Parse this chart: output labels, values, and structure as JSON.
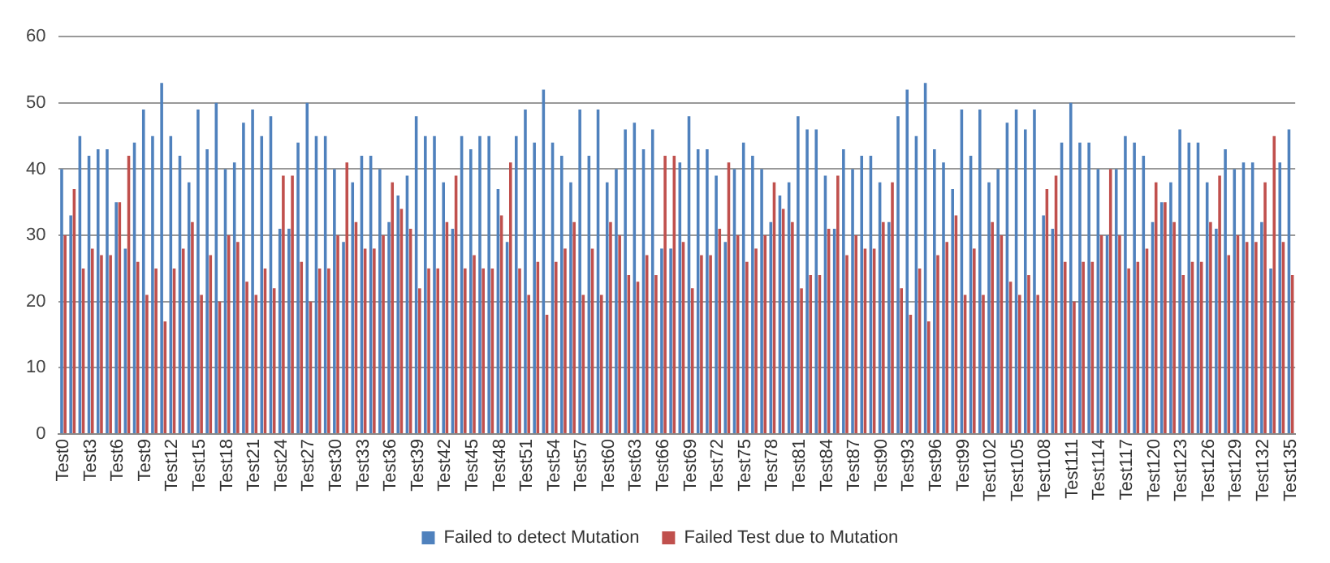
{
  "chart_data": {
    "type": "bar",
    "categories": [
      "Test0",
      null,
      null,
      "Test3",
      null,
      null,
      "Test6",
      null,
      null,
      "Test9",
      null,
      null,
      "Test12",
      null,
      null,
      "Test15",
      null,
      null,
      "Test18",
      null,
      null,
      "Test21",
      null,
      null,
      "Test24",
      null,
      null,
      "Test27",
      null,
      null,
      "Test30",
      null,
      null,
      "Test33",
      null,
      null,
      "Test36",
      null,
      null,
      "Test39",
      null,
      null,
      "Test42",
      null,
      null,
      "Test45",
      null,
      null,
      "Test48",
      null,
      null,
      "Test51",
      null,
      null,
      "Test54",
      null,
      null,
      "Test57",
      null,
      null,
      "Test60",
      null,
      null,
      "Test63",
      null,
      null,
      "Test66",
      null,
      null,
      "Test69",
      null,
      null,
      "Test72",
      null,
      null,
      "Test75",
      null,
      null,
      "Test78",
      null,
      null,
      "Test81",
      null,
      null,
      "Test84",
      null,
      null,
      "Test87",
      null,
      null,
      "Test90",
      null,
      null,
      "Test93",
      null,
      null,
      "Test96",
      null,
      null,
      "Test99",
      null,
      null,
      "Test102",
      null,
      null,
      "Test105",
      null,
      null,
      "Test108",
      null,
      null,
      "Test111",
      null,
      null,
      "Test114",
      null,
      null,
      "Test117",
      null,
      null,
      "Test120",
      null,
      null,
      "Test123",
      null,
      null,
      "Test126",
      null,
      null,
      "Test129",
      null,
      null,
      "Test132",
      null,
      null,
      "Test135"
    ],
    "series": [
      {
        "name": "Failed to detect Mutation",
        "color": "#4f81bd",
        "values": [
          40,
          33,
          45,
          42,
          43,
          43,
          35,
          28,
          44,
          49,
          45,
          53,
          45,
          42,
          38,
          49,
          43,
          50,
          40,
          41,
          47,
          49,
          45,
          48,
          31,
          31,
          44,
          50,
          45,
          45,
          40,
          29,
          38,
          42,
          42,
          40,
          32,
          36,
          39,
          48,
          45,
          45,
          38,
          31,
          45,
          43,
          45,
          45,
          37,
          29,
          45,
          49,
          44,
          52,
          44,
          42,
          38,
          49,
          42,
          49,
          38,
          40,
          46,
          47,
          43,
          46,
          28,
          28,
          41,
          48,
          43,
          43,
          39,
          29,
          40,
          44,
          42,
          40,
          32,
          36,
          38,
          48,
          46,
          46,
          39,
          31,
          43,
          40,
          42,
          42,
          38,
          32,
          48,
          52,
          45,
          53,
          43,
          41,
          37,
          49,
          42,
          49,
          38,
          40,
          47,
          49,
          46,
          49,
          33,
          31,
          44,
          50,
          44,
          44,
          40,
          30,
          40,
          45,
          44,
          42,
          32,
          35,
          38,
          46,
          44,
          44,
          38,
          31,
          43,
          40,
          41,
          41,
          32,
          25,
          41,
          46
        ]
      },
      {
        "name": "Failed Test due to Mutation",
        "color": "#c0504d",
        "values": [
          30,
          37,
          25,
          28,
          27,
          27,
          35,
          42,
          26,
          21,
          25,
          17,
          25,
          28,
          32,
          21,
          27,
          20,
          30,
          29,
          23,
          21,
          25,
          22,
          39,
          39,
          26,
          20,
          25,
          25,
          30,
          41,
          32,
          28,
          28,
          30,
          38,
          34,
          31,
          22,
          25,
          25,
          32,
          39,
          25,
          27,
          25,
          25,
          33,
          41,
          25,
          21,
          26,
          18,
          26,
          28,
          32,
          21,
          28,
          21,
          32,
          30,
          24,
          23,
          27,
          24,
          42,
          42,
          29,
          22,
          27,
          27,
          31,
          41,
          30,
          26,
          28,
          30,
          38,
          34,
          32,
          22,
          24,
          24,
          31,
          39,
          27,
          30,
          28,
          28,
          32,
          38,
          22,
          18,
          25,
          17,
          27,
          29,
          33,
          21,
          28,
          21,
          32,
          30,
          23,
          21,
          24,
          21,
          37,
          39,
          26,
          20,
          26,
          26,
          30,
          40,
          30,
          25,
          26,
          28,
          38,
          35,
          32,
          24,
          26,
          26,
          32,
          39,
          27,
          30,
          29,
          29,
          38,
          45,
          29,
          24
        ]
      }
    ],
    "ylim": [
      0,
      60
    ],
    "yticks": [
      0,
      10,
      20,
      30,
      40,
      50,
      60
    ],
    "grid": "y",
    "legend": "bottom"
  }
}
